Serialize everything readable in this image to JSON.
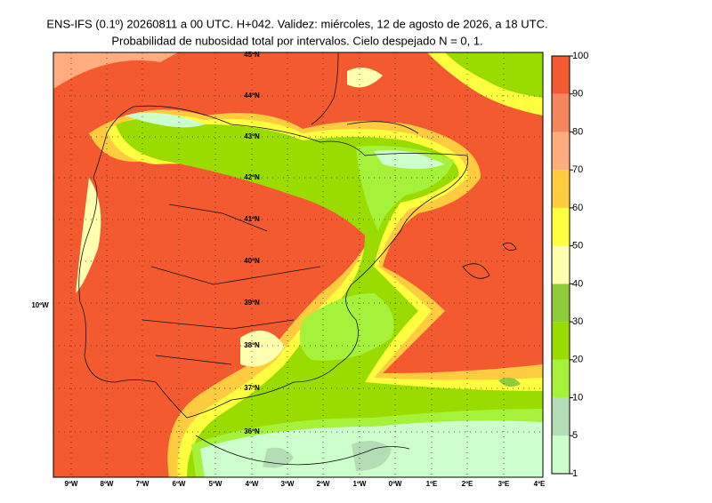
{
  "header": {
    "title": "ENS-IFS (0.1º) 20260811 a 00 UTC. H+042. Validez: miércoles, 12 de agosto de 2026, a 18 UTC.",
    "subtitle": "Probabilidad de nubosidad total por intervalos. Cielo despejado N = 0, 1."
  },
  "map": {
    "lat_labels": [
      "45ºN",
      "44ºN",
      "43ºN",
      "42ºN",
      "41ºN",
      "40ºN",
      "39ºN",
      "38ºN",
      "37ºN",
      "36ºN"
    ],
    "lon_labels": [
      "9ºW",
      "8ºW",
      "7ºW",
      "6ºW",
      "5ºW",
      "4ºW",
      "3ºW",
      "2ºW",
      "1ºW",
      "0ºW",
      "1ºE",
      "2ºE",
      "3ºE",
      "4ºE"
    ],
    "side_label": "10ºW"
  },
  "colorbar": {
    "ticks": [
      1,
      5,
      10,
      20,
      30,
      40,
      50,
      60,
      70,
      80,
      90,
      100
    ],
    "colors": [
      "#ccffcc",
      "#b5ddb5",
      "#a6f23a",
      "#9bdc00",
      "#8fcc3a",
      "#ffffb0",
      "#ffff40",
      "#ffcc40",
      "#ffad80",
      "#f5865f",
      "#f45a30"
    ]
  }
}
